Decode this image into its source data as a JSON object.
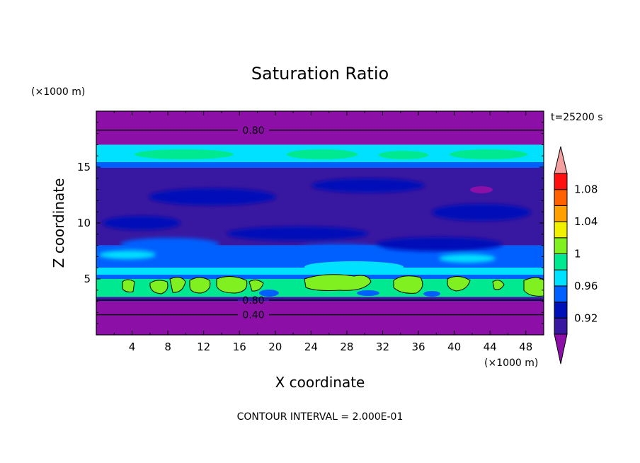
{
  "chart_data": {
    "type": "heatmap",
    "title": "Saturation Ratio",
    "xlabel": "X coordinate",
    "ylabel": "Z coordinate",
    "x_unit": "(×1000 m)",
    "z_unit": "(×1000 m)",
    "time_label": "t=25200 s",
    "footer": "CONTOUR INTERVAL = 2.000E-01",
    "xlim": [
      0,
      50
    ],
    "ylim": [
      0,
      20
    ],
    "x_ticks": [
      4,
      8,
      12,
      16,
      20,
      24,
      28,
      32,
      36,
      40,
      44,
      48
    ],
    "y_ticks": [
      5,
      10,
      15
    ],
    "grid": false,
    "contour_lines": [
      {
        "value": 0.8,
        "z": 18.3,
        "label": "0.80"
      },
      {
        "value": 0.8,
        "z": 3.1,
        "label": "0.80"
      },
      {
        "value": 0.4,
        "z": 1.8,
        "label": "0.40"
      }
    ],
    "colorbar": {
      "labels": [
        "1.08",
        "1.04",
        "1",
        "0.96",
        "0.92"
      ],
      "levels": [
        0.92,
        0.94,
        0.96,
        0.98,
        1.0,
        1.02,
        1.04,
        1.06,
        1.08,
        1.1
      ],
      "colors": [
        "#8c10a8",
        "#3818a0",
        "#0010b8",
        "#0060ff",
        "#00e0ff",
        "#00e890",
        "#80f020",
        "#f0f000",
        "#ffa000",
        "#ff6000",
        "#ff1010",
        "#f4a0a0"
      ]
    },
    "bands": [
      {
        "z0": 0.0,
        "z1": 3.0,
        "level": "below 0.92",
        "color": "#8c10a8"
      },
      {
        "z0": 3.0,
        "z1": 3.4,
        "level": "0.92-0.94",
        "color": "#3818a0"
      },
      {
        "z0": 3.4,
        "z1": 5.0,
        "level": "0.98-1.00",
        "color": "#00e890"
      },
      {
        "z0": 5.0,
        "z1": 8.0,
        "level": "0.94-0.96",
        "color": "#0060ff"
      },
      {
        "z0": 8.0,
        "z1": 15.0,
        "level": "0.92-0.94",
        "color": "#3818a0"
      },
      {
        "z0": 15.0,
        "z1": 17.0,
        "level": "0.96-0.98",
        "color": "#00e0ff"
      },
      {
        "z0": 17.0,
        "z1": 20.0,
        "level": "below 0.92",
        "color": "#8c10a8"
      }
    ]
  }
}
